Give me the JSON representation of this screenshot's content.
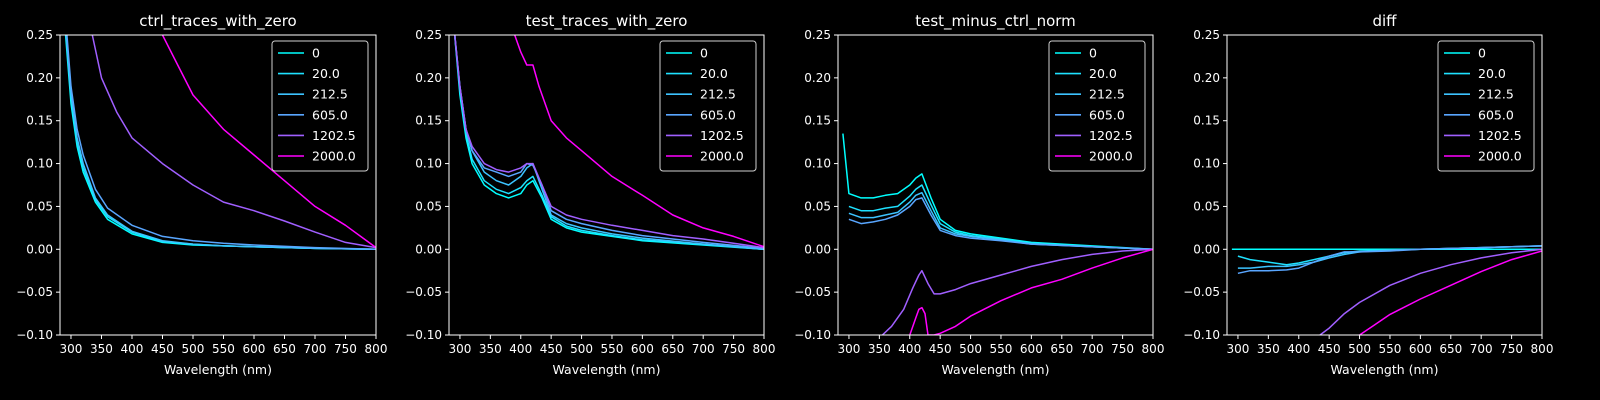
{
  "chart_data": [
    {
      "type": "line",
      "title": "ctrl_traces_with_zero",
      "xlabel": "Wavelength (nm)",
      "ylabel": "",
      "xlim": [
        282,
        800
      ],
      "ylim": [
        -0.1,
        0.25
      ],
      "xticks": [
        300,
        350,
        400,
        450,
        500,
        550,
        600,
        650,
        700,
        750,
        800
      ],
      "yticks": [
        -0.1,
        -0.05,
        0.0,
        0.05,
        0.1,
        0.15,
        0.2,
        0.25
      ],
      "ytick_labels": [
        "−0.10",
        "−0.05",
        "0.00",
        "0.05",
        "0.10",
        "0.15",
        "0.20",
        "0.25"
      ],
      "legend": "top-right",
      "grid": false,
      "series": [
        {
          "name": "0",
          "color": "#00ffff",
          "x": [
            290,
            300,
            310,
            320,
            340,
            360,
            400,
            450,
            500,
            550,
            600,
            700,
            800
          ],
          "y": [
            0.26,
            0.17,
            0.12,
            0.09,
            0.055,
            0.035,
            0.018,
            0.008,
            0.005,
            0.004,
            0.003,
            0.001,
            0.0
          ]
        },
        {
          "name": "20.0",
          "color": "#1ee1ff",
          "x": [
            290,
            300,
            310,
            320,
            340,
            360,
            400,
            450,
            500,
            550,
            600,
            700,
            800
          ],
          "y": [
            0.27,
            0.18,
            0.125,
            0.095,
            0.058,
            0.038,
            0.02,
            0.009,
            0.006,
            0.004,
            0.003,
            0.001,
            0.0
          ]
        },
        {
          "name": "212.5",
          "color": "#3cc3ff",
          "x": [
            290,
            300,
            310,
            320,
            340,
            360,
            400,
            450,
            500,
            550,
            600,
            700,
            800
          ],
          "y": [
            0.27,
            0.18,
            0.13,
            0.1,
            0.06,
            0.04,
            0.021,
            0.01,
            0.006,
            0.004,
            0.003,
            0.001,
            0.0
          ]
        },
        {
          "name": "605.0",
          "color": "#59a6ff",
          "x": [
            290,
            300,
            310,
            320,
            340,
            360,
            400,
            450,
            500,
            550,
            600,
            700,
            800
          ],
          "y": [
            0.28,
            0.19,
            0.14,
            0.11,
            0.07,
            0.048,
            0.028,
            0.015,
            0.01,
            0.007,
            0.005,
            0.002,
            0.0
          ]
        },
        {
          "name": "1202.5",
          "color": "#a05fff",
          "x": [
            335,
            350,
            375,
            400,
            450,
            500,
            550,
            600,
            650,
            700,
            750,
            800
          ],
          "y": [
            0.25,
            0.2,
            0.16,
            0.13,
            0.1,
            0.075,
            0.055,
            0.045,
            0.033,
            0.02,
            0.008,
            0.002
          ]
        },
        {
          "name": "2000.0",
          "color": "#ff00ff",
          "x": [
            450,
            475,
            500,
            550,
            600,
            650,
            700,
            750,
            800
          ],
          "y": [
            0.25,
            0.215,
            0.18,
            0.14,
            0.11,
            0.08,
            0.05,
            0.028,
            0.002
          ]
        }
      ]
    },
    {
      "type": "line",
      "title": "test_traces_with_zero",
      "xlabel": "Wavelength (nm)",
      "ylabel": "",
      "xlim": [
        282,
        800
      ],
      "ylim": [
        -0.1,
        0.25
      ],
      "xticks": [
        300,
        350,
        400,
        450,
        500,
        550,
        600,
        650,
        700,
        750,
        800
      ],
      "yticks": [
        -0.1,
        -0.05,
        0.0,
        0.05,
        0.1,
        0.15,
        0.2,
        0.25
      ],
      "ytick_labels": [
        "−0.10",
        "−0.05",
        "0.00",
        "0.05",
        "0.10",
        "0.15",
        "0.20",
        "0.25"
      ],
      "legend": "top-right",
      "grid": false,
      "series": [
        {
          "name": "0",
          "color": "#00ffff",
          "x": [
            290,
            300,
            310,
            320,
            340,
            360,
            380,
            400,
            410,
            420,
            435,
            450,
            475,
            500,
            550,
            600,
            700,
            800
          ],
          "y": [
            0.26,
            0.18,
            0.13,
            0.1,
            0.075,
            0.065,
            0.06,
            0.065,
            0.075,
            0.08,
            0.06,
            0.035,
            0.025,
            0.02,
            0.015,
            0.01,
            0.005,
            0.0
          ]
        },
        {
          "name": "20.0",
          "color": "#1ee1ff",
          "x": [
            290,
            300,
            310,
            320,
            340,
            360,
            380,
            400,
            410,
            420,
            435,
            450,
            475,
            500,
            550,
            600,
            700,
            800
          ],
          "y": [
            0.26,
            0.185,
            0.135,
            0.105,
            0.08,
            0.07,
            0.065,
            0.072,
            0.08,
            0.085,
            0.063,
            0.038,
            0.027,
            0.022,
            0.016,
            0.011,
            0.006,
            0.0
          ]
        },
        {
          "name": "212.5",
          "color": "#3cc3ff",
          "x": [
            290,
            300,
            310,
            320,
            340,
            360,
            380,
            400,
            410,
            420,
            435,
            450,
            475,
            500,
            550,
            600,
            700,
            800
          ],
          "y": [
            0.26,
            0.19,
            0.14,
            0.115,
            0.09,
            0.08,
            0.075,
            0.085,
            0.095,
            0.1,
            0.07,
            0.04,
            0.03,
            0.025,
            0.018,
            0.013,
            0.006,
            0.0
          ]
        },
        {
          "name": "605.0",
          "color": "#59a6ff",
          "x": [
            290,
            300,
            310,
            320,
            340,
            360,
            380,
            400,
            410,
            420,
            435,
            450,
            475,
            500,
            550,
            600,
            700,
            800
          ],
          "y": [
            0.26,
            0.19,
            0.14,
            0.115,
            0.095,
            0.09,
            0.085,
            0.09,
            0.1,
            0.098,
            0.075,
            0.045,
            0.035,
            0.03,
            0.022,
            0.016,
            0.008,
            0.001
          ]
        },
        {
          "name": "1202.5",
          "color": "#a05fff",
          "x": [
            290,
            300,
            310,
            320,
            340,
            360,
            380,
            400,
            410,
            420,
            435,
            450,
            475,
            500,
            550,
            600,
            650,
            700,
            750,
            800
          ],
          "y": [
            0.26,
            0.19,
            0.14,
            0.12,
            0.1,
            0.093,
            0.09,
            0.095,
            0.1,
            0.1,
            0.075,
            0.05,
            0.04,
            0.035,
            0.028,
            0.022,
            0.016,
            0.012,
            0.007,
            0.002
          ]
        },
        {
          "name": "2000.0",
          "color": "#ff00ff",
          "x": [
            390,
            400,
            410,
            420,
            430,
            450,
            475,
            500,
            550,
            600,
            650,
            700,
            750,
            800
          ],
          "y": [
            0.25,
            0.23,
            0.215,
            0.215,
            0.19,
            0.15,
            0.13,
            0.115,
            0.085,
            0.063,
            0.04,
            0.025,
            0.015,
            0.003
          ]
        }
      ]
    },
    {
      "type": "line",
      "title": "test_minus_ctrl_norm",
      "xlabel": "Wavelength (nm)",
      "ylabel": "",
      "xlim": [
        282,
        800
      ],
      "ylim": [
        -0.1,
        0.25
      ],
      "xticks": [
        300,
        350,
        400,
        450,
        500,
        550,
        600,
        650,
        700,
        750,
        800
      ],
      "yticks": [
        -0.1,
        -0.05,
        0.0,
        0.05,
        0.1,
        0.15,
        0.2,
        0.25
      ],
      "ytick_labels": [
        "−0.10",
        "−0.05",
        "0.00",
        "0.05",
        "0.10",
        "0.15",
        "0.20",
        "0.25"
      ],
      "legend": "top-right",
      "grid": false,
      "series": [
        {
          "name": "0",
          "color": "#00ffff",
          "x": [
            290,
            300,
            320,
            340,
            360,
            380,
            400,
            410,
            420,
            435,
            450,
            475,
            500,
            550,
            600,
            700,
            800
          ],
          "y": [
            0.135,
            0.065,
            0.06,
            0.06,
            0.063,
            0.065,
            0.075,
            0.083,
            0.088,
            0.06,
            0.035,
            0.022,
            0.018,
            0.013,
            0.008,
            0.004,
            0.0
          ]
        },
        {
          "name": "20.0",
          "color": "#1ee1ff",
          "x": [
            300,
            320,
            340,
            360,
            380,
            400,
            410,
            420,
            435,
            450,
            475,
            500,
            550,
            600,
            700,
            800
          ],
          "y": [
            0.05,
            0.045,
            0.045,
            0.048,
            0.05,
            0.062,
            0.07,
            0.075,
            0.052,
            0.03,
            0.02,
            0.016,
            0.012,
            0.007,
            0.003,
            0.0
          ]
        },
        {
          "name": "212.5",
          "color": "#3cc3ff",
          "x": [
            300,
            320,
            340,
            360,
            380,
            400,
            410,
            420,
            435,
            450,
            475,
            500,
            550,
            600,
            700,
            800
          ],
          "y": [
            0.042,
            0.037,
            0.037,
            0.04,
            0.043,
            0.055,
            0.063,
            0.066,
            0.045,
            0.025,
            0.018,
            0.015,
            0.011,
            0.006,
            0.003,
            0.0
          ]
        },
        {
          "name": "605.0",
          "color": "#59a6ff",
          "x": [
            300,
            320,
            340,
            360,
            380,
            400,
            410,
            420,
            435,
            450,
            475,
            500,
            550,
            600,
            700,
            800
          ],
          "y": [
            0.035,
            0.03,
            0.032,
            0.035,
            0.04,
            0.05,
            0.058,
            0.06,
            0.04,
            0.022,
            0.016,
            0.013,
            0.01,
            0.006,
            0.003,
            0.0
          ]
        },
        {
          "name": "1202.5",
          "color": "#a05fff",
          "x": [
            355,
            370,
            390,
            405,
            415,
            420,
            430,
            440,
            450,
            475,
            500,
            550,
            600,
            650,
            700,
            750,
            800
          ],
          "y": [
            -0.1,
            -0.09,
            -0.07,
            -0.045,
            -0.03,
            -0.025,
            -0.04,
            -0.052,
            -0.052,
            -0.047,
            -0.04,
            -0.03,
            -0.02,
            -0.012,
            -0.006,
            -0.002,
            0.0
          ]
        },
        {
          "name": "2000.0",
          "color": "#ff00ff",
          "x": [
            400,
            410,
            415,
            420,
            425,
            430,
            440,
            450,
            475,
            500,
            550,
            600,
            650,
            700,
            750,
            800
          ],
          "y": [
            -0.1,
            -0.08,
            -0.07,
            -0.068,
            -0.075,
            -0.1,
            -0.1,
            -0.098,
            -0.09,
            -0.078,
            -0.06,
            -0.045,
            -0.035,
            -0.022,
            -0.01,
            0.0
          ]
        }
      ]
    },
    {
      "type": "line",
      "title": "diff",
      "xlabel": "Wavelength (nm)",
      "ylabel": "",
      "xlim": [
        282,
        800
      ],
      "ylim": [
        -0.1,
        0.25
      ],
      "xticks": [
        300,
        350,
        400,
        450,
        500,
        550,
        600,
        650,
        700,
        750,
        800
      ],
      "yticks": [
        -0.1,
        -0.05,
        0.0,
        0.05,
        0.1,
        0.15,
        0.2,
        0.25
      ],
      "ytick_labels": [
        "−0.10",
        "−0.05",
        "0.00",
        "0.05",
        "0.10",
        "0.15",
        "0.20",
        "0.25"
      ],
      "legend": "top-right",
      "grid": false,
      "series": [
        {
          "name": "0",
          "color": "#00ffff",
          "x": [
            290,
            800
          ],
          "y": [
            0.0,
            0.0
          ]
        },
        {
          "name": "20.0",
          "color": "#1ee1ff",
          "x": [
            300,
            320,
            350,
            380,
            400,
            425,
            450,
            475,
            500,
            550,
            600,
            700,
            800
          ],
          "y": [
            -0.008,
            -0.012,
            -0.015,
            -0.018,
            -0.016,
            -0.012,
            -0.008,
            -0.004,
            -0.002,
            -0.001,
            0.0,
            0.002,
            0.004
          ]
        },
        {
          "name": "212.5",
          "color": "#3cc3ff",
          "x": [
            300,
            320,
            350,
            380,
            400,
            425,
            450,
            475,
            500,
            550,
            600,
            700,
            800
          ],
          "y": [
            -0.022,
            -0.022,
            -0.02,
            -0.02,
            -0.018,
            -0.015,
            -0.01,
            -0.006,
            -0.003,
            -0.001,
            0.0,
            0.002,
            0.004
          ]
        },
        {
          "name": "605.0",
          "color": "#59a6ff",
          "x": [
            300,
            320,
            350,
            380,
            400,
            425,
            450,
            475,
            500,
            550,
            600,
            700,
            800
          ],
          "y": [
            -0.028,
            -0.025,
            -0.025,
            -0.024,
            -0.022,
            -0.015,
            -0.008,
            -0.003,
            -0.003,
            -0.002,
            0.0,
            0.002,
            0.004
          ]
        },
        {
          "name": "1202.5",
          "color": "#a05fff",
          "x": [
            435,
            450,
            475,
            500,
            550,
            600,
            650,
            700,
            750,
            800
          ],
          "y": [
            -0.1,
            -0.092,
            -0.075,
            -0.062,
            -0.042,
            -0.028,
            -0.018,
            -0.01,
            -0.004,
            0.0
          ]
        },
        {
          "name": "2000.0",
          "color": "#ff00ff",
          "x": [
            500,
            525,
            550,
            600,
            650,
            700,
            750,
            800
          ],
          "y": [
            -0.1,
            -0.088,
            -0.076,
            -0.058,
            -0.042,
            -0.026,
            -0.012,
            -0.002
          ]
        }
      ]
    }
  ]
}
